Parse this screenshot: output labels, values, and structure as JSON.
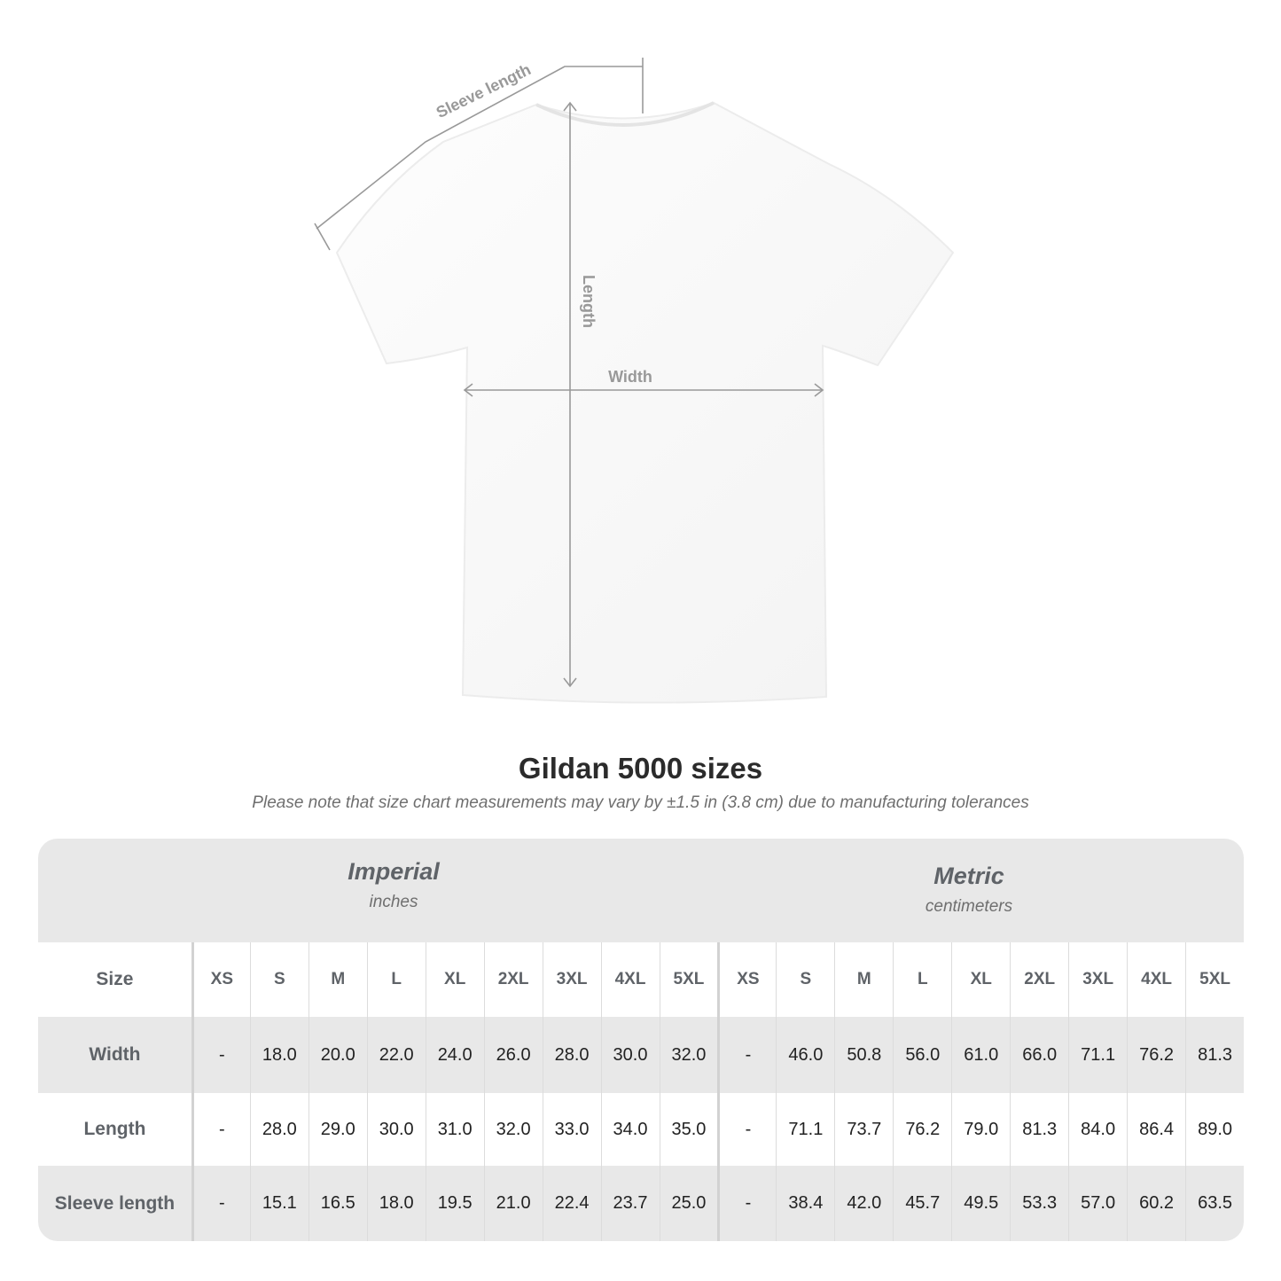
{
  "diagram": {
    "labels": {
      "sleeve": "Sleeve length",
      "length": "Length",
      "width": "Width"
    },
    "line_color": "#999999"
  },
  "header": {
    "title": "Gildan 5000 sizes",
    "subtitle": "Please note that size chart measurements may vary by ±1.5 in (3.8 cm) due to manufacturing tolerances"
  },
  "table": {
    "imperial": {
      "name": "Imperial",
      "unit": "inches"
    },
    "metric": {
      "name": "Metric",
      "unit": "centimeters"
    },
    "size_label": "Size",
    "sizes": [
      "XS",
      "S",
      "M",
      "L",
      "XL",
      "2XL",
      "3XL",
      "4XL",
      "5XL"
    ],
    "rows": [
      {
        "label": "Width",
        "imperial": [
          "-",
          "18.0",
          "20.0",
          "22.0",
          "24.0",
          "26.0",
          "28.0",
          "30.0",
          "32.0"
        ],
        "metric": [
          "-",
          "46.0",
          "50.8",
          "56.0",
          "61.0",
          "66.0",
          "71.1",
          "76.2",
          "81.3"
        ]
      },
      {
        "label": "Length",
        "imperial": [
          "-",
          "28.0",
          "29.0",
          "30.0",
          "31.0",
          "32.0",
          "33.0",
          "34.0",
          "35.0"
        ],
        "metric": [
          "-",
          "71.1",
          "73.7",
          "76.2",
          "79.0",
          "81.3",
          "84.0",
          "86.4",
          "89.0"
        ]
      },
      {
        "label": "Sleeve length",
        "imperial": [
          "-",
          "15.1",
          "16.5",
          "18.0",
          "19.5",
          "21.0",
          "22.4",
          "23.7",
          "25.0"
        ],
        "metric": [
          "-",
          "38.4",
          "42.0",
          "45.7",
          "49.5",
          "53.3",
          "57.0",
          "60.2",
          "63.5"
        ]
      }
    ],
    "band_color": "#e8e8e8"
  }
}
